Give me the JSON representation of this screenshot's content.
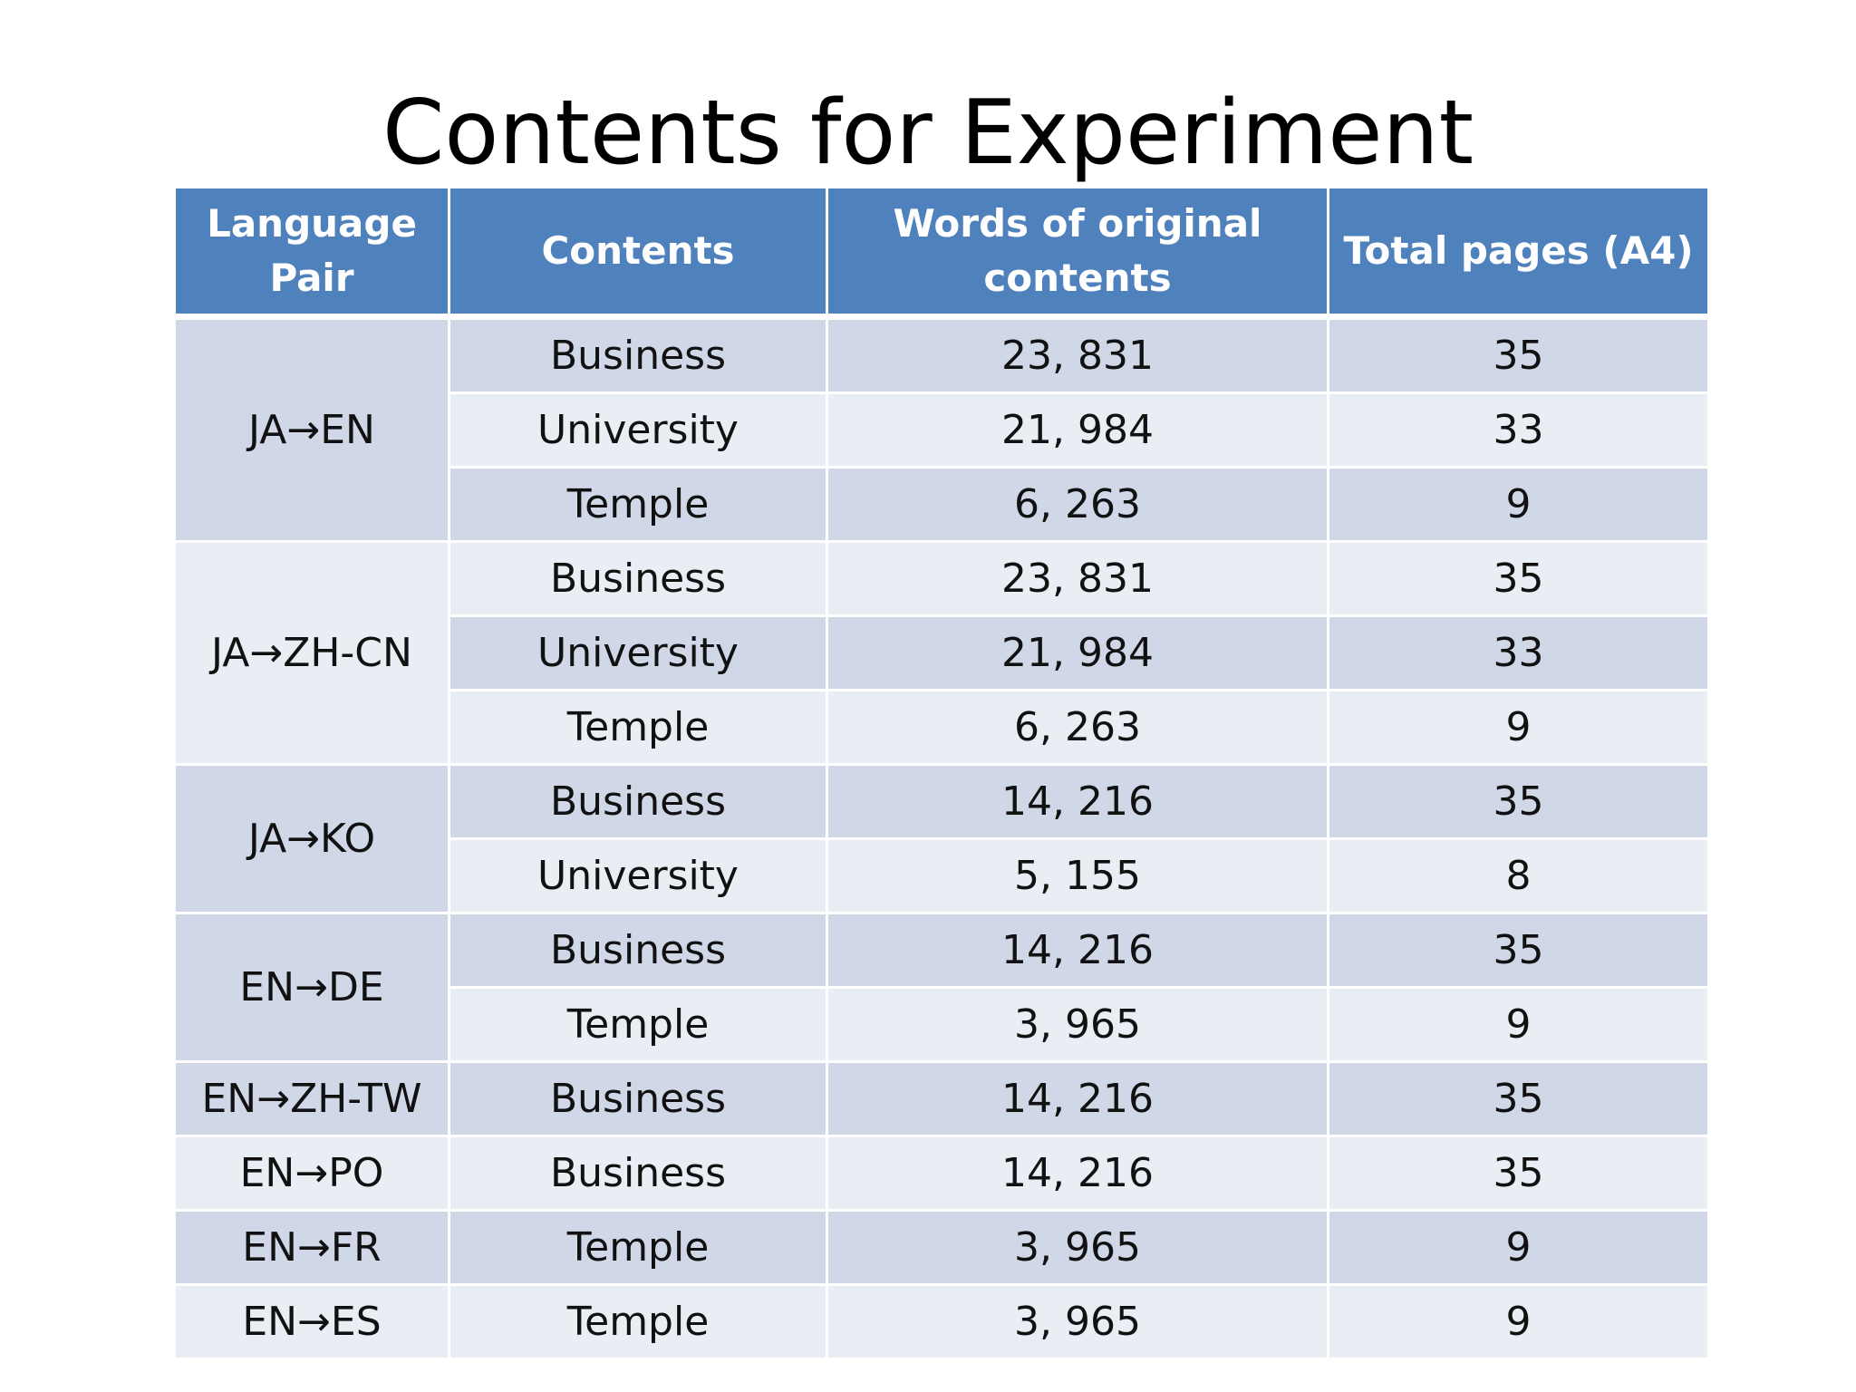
{
  "title": "Contents for Experiment",
  "table": {
    "headers": [
      "Language Pair",
      "Contents",
      "Words of original contents",
      "Total pages (A4)"
    ],
    "groups": [
      {
        "pair": "JA→EN",
        "shade": "dark",
        "rows": [
          {
            "contents": "Business",
            "words": "23, 831",
            "pages": "35"
          },
          {
            "contents": "University",
            "words": "21, 984",
            "pages": "33"
          },
          {
            "contents": "Temple",
            "words": "6, 263",
            "pages": "9"
          }
        ]
      },
      {
        "pair": "JA→ZH-CN",
        "shade": "light",
        "rows": [
          {
            "contents": "Business",
            "words": "23, 831",
            "pages": "35"
          },
          {
            "contents": "University",
            "words": "21, 984",
            "pages": "33"
          },
          {
            "contents": "Temple",
            "words": "6, 263",
            "pages": "9"
          }
        ]
      },
      {
        "pair": "JA→KO",
        "shade": "dark",
        "rows": [
          {
            "contents": "Business",
            "words": "14, 216",
            "pages": "35"
          },
          {
            "contents": "University",
            "words": "5, 155",
            "pages": "8"
          }
        ]
      },
      {
        "pair": "EN→DE",
        "shade": "dark",
        "rows": [
          {
            "contents": "Business",
            "words": "14, 216",
            "pages": "35"
          },
          {
            "contents": "Temple",
            "words": "3, 965",
            "pages": "9"
          }
        ]
      },
      {
        "pair": "EN→ZH-TW",
        "shade": "dark",
        "rows": [
          {
            "contents": "Business",
            "words": "14, 216",
            "pages": "35"
          }
        ]
      },
      {
        "pair": "EN→PO",
        "shade": "light",
        "rows": [
          {
            "contents": "Business",
            "words": "14, 216",
            "pages": "35"
          }
        ]
      },
      {
        "pair": "EN→FR",
        "shade": "dark",
        "rows": [
          {
            "contents": "Temple",
            "words": "3, 965",
            "pages": "9"
          }
        ]
      },
      {
        "pair": "EN→ES",
        "shade": "light",
        "rows": [
          {
            "contents": "Temple",
            "words": "3, 965",
            "pages": "9"
          }
        ]
      }
    ]
  },
  "colors": {
    "header_bg": "#4f81bd",
    "band_dark": "#d0d8e8",
    "band_light": "#e9edf4"
  }
}
